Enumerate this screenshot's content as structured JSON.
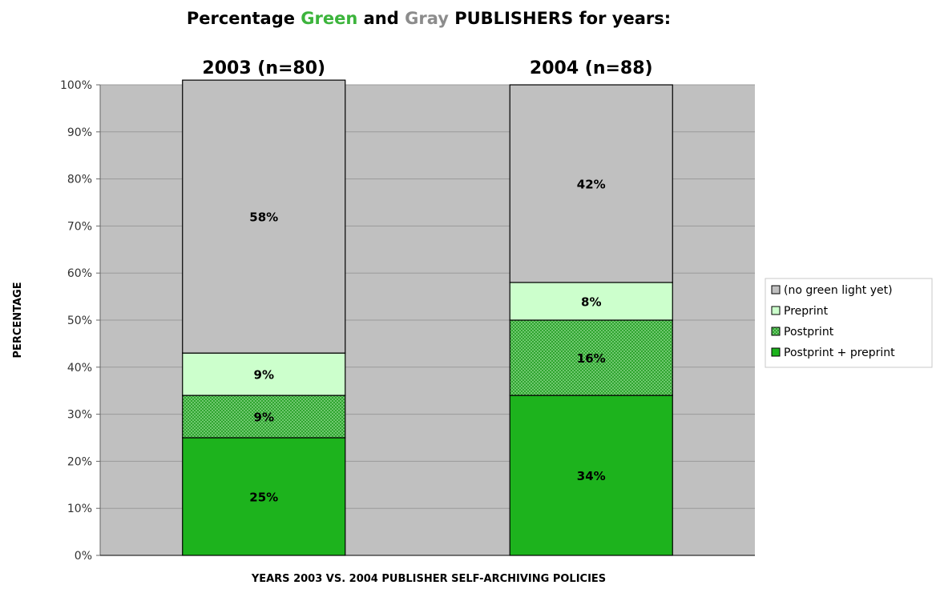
{
  "chart_data": {
    "type": "bar",
    "stacked": true,
    "title_parts": [
      {
        "text": "Percentage ",
        "color": "#000000"
      },
      {
        "text": "Green",
        "color": "#3cb43c"
      },
      {
        "text": " and ",
        "color": "#000000"
      },
      {
        "text": "Gray",
        "color": "#8c8c8c"
      },
      {
        "text": " PUBLISHERS for years:",
        "color": "#000000"
      }
    ],
    "categories": [
      "2003 (n=80)",
      "2004 (n=88)"
    ],
    "xlabel": "YEARS 2003 VS. 2004 PUBLISHER SELF-ARCHIVING POLICIES",
    "ylabel": "PERCENTAGE",
    "ylim": [
      0,
      100
    ],
    "yticks": [
      "0%",
      "10%",
      "20%",
      "30%",
      "40%",
      "50%",
      "60%",
      "70%",
      "80%",
      "90%",
      "100%"
    ],
    "grid": true,
    "legend_position": "right",
    "plot_background": "#c0c0c0",
    "series": [
      {
        "name": "Postprint + preprint",
        "values": [
          25,
          34
        ],
        "labels": [
          "25%",
          "34%"
        ],
        "color": "#1db31d",
        "pattern": "solid"
      },
      {
        "name": "Postprint",
        "values": [
          9,
          16
        ],
        "labels": [
          "9%",
          "16%"
        ],
        "color": "#3da83d",
        "pattern": "dots"
      },
      {
        "name": "Preprint",
        "values": [
          9,
          8
        ],
        "labels": [
          "9%",
          "8%"
        ],
        "color": "#ccffcc",
        "pattern": "solid"
      },
      {
        "name": "(no green light yet)",
        "values": [
          58,
          42
        ],
        "labels": [
          "58%",
          "42%"
        ],
        "color": "#c0c0c0",
        "pattern": "solid"
      }
    ],
    "legend_order": [
      "(no green light yet)",
      "Preprint",
      "Postprint",
      "Postprint + preprint"
    ]
  }
}
